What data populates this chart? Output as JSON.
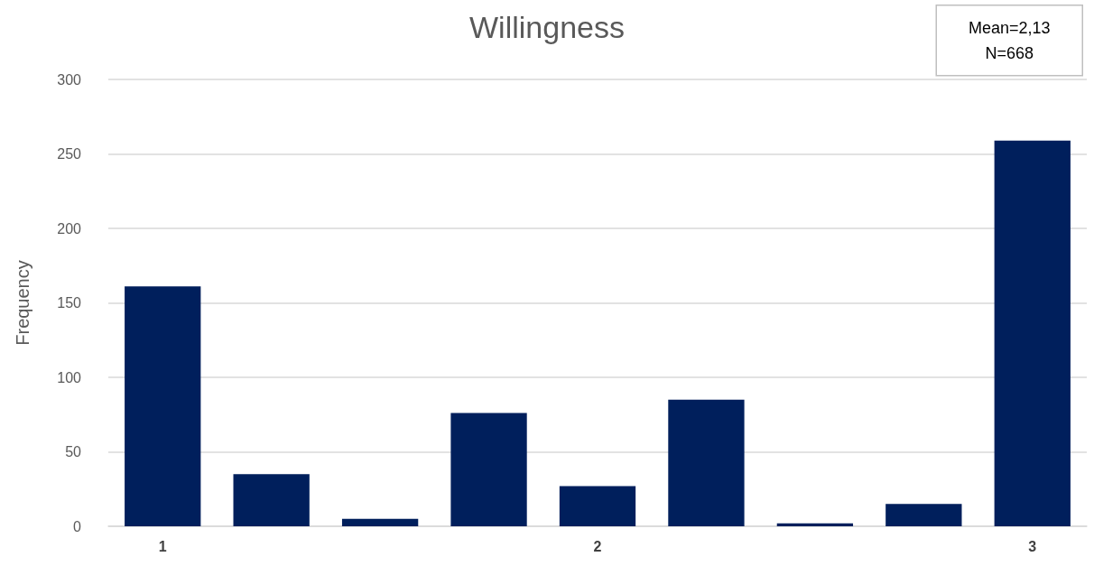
{
  "chart_data": {
    "type": "bar",
    "title": "Willingness",
    "ylabel": "Frequency",
    "categories": [
      "1",
      null,
      null,
      null,
      "2",
      null,
      null,
      null,
      "3"
    ],
    "values": [
      161,
      35,
      5,
      76,
      27,
      85,
      2,
      15,
      259
    ],
    "color": "#001f5c",
    "ylim": [
      0,
      300
    ],
    "yticks": [
      0,
      50,
      100,
      150,
      200,
      250,
      300
    ],
    "grid": "y",
    "annotations": [
      "Mean=2,13",
      "N=668"
    ]
  }
}
